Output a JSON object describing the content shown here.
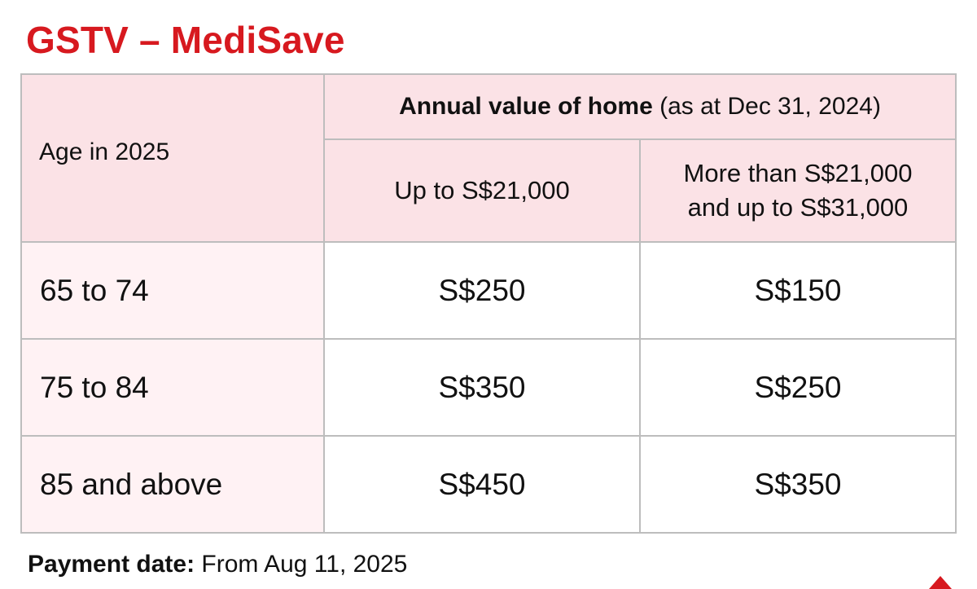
{
  "title": "GSTV – MediSave",
  "table": {
    "age_header": "Age in 2025",
    "annual_value_header": {
      "bold": "Annual value of home",
      "note": " (as at Dec 31, 2024)"
    },
    "columns": [
      {
        "lines": [
          "Up to S$21,000"
        ]
      },
      {
        "lines": [
          "More than S$21,000",
          "and up to S$31,000"
        ]
      }
    ],
    "rows": [
      {
        "age": "65 to 74",
        "values": [
          "S$250",
          "S$150"
        ]
      },
      {
        "age": "75 to 84",
        "values": [
          "S$350",
          "S$250"
        ]
      },
      {
        "age": "85 and above",
        "values": [
          "S$450",
          "S$350"
        ]
      }
    ]
  },
  "footer": {
    "label": "Payment date:",
    "value": " From Aug 11, 2025"
  },
  "colors": {
    "title": "#d7191f",
    "header_bg": "#fbe2e6",
    "age_cell_bg": "#fff2f4",
    "border": "#bdbdbd"
  },
  "icons": {
    "corner": "red-triangle-mark"
  }
}
